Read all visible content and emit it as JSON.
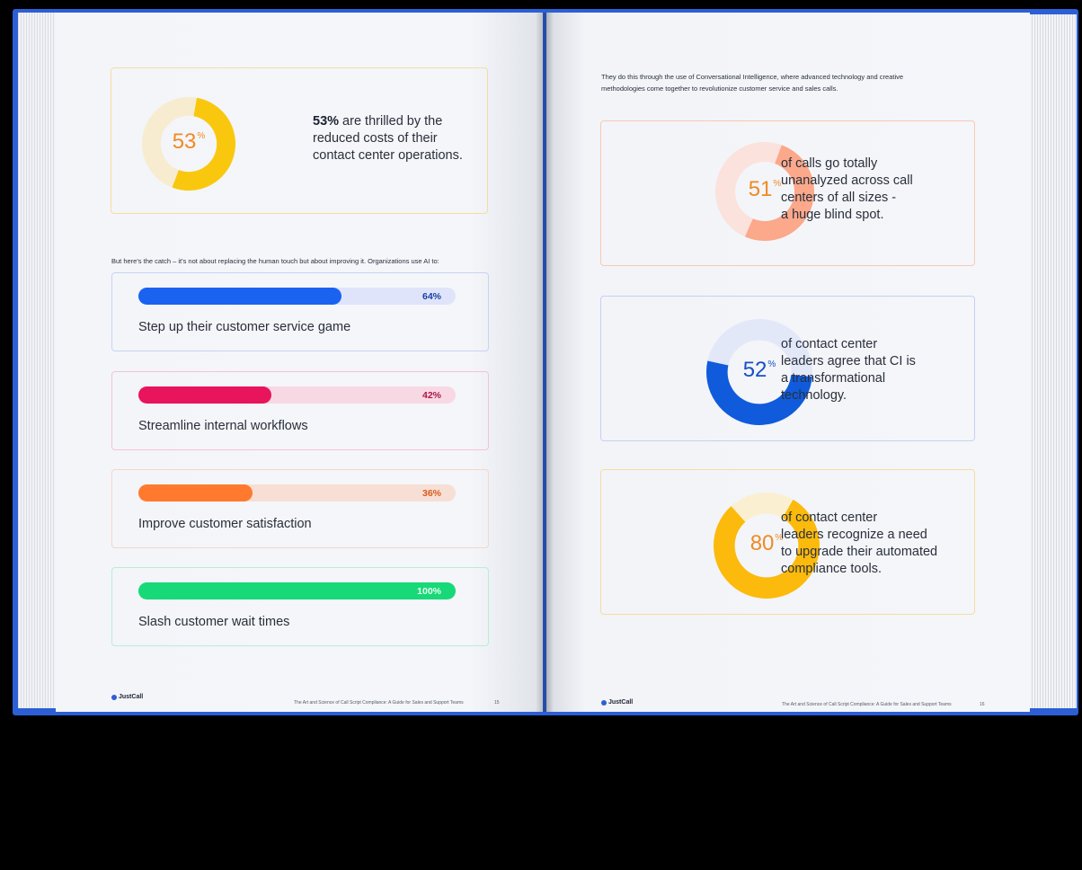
{
  "left": {
    "top_stat": {
      "value": "53",
      "pct_sign": "%",
      "fraction": 0.53,
      "bold": "53%",
      "text_line1": " are thrilled by the",
      "text_line2": "reduced costs of their",
      "text_line3": "contact center operations.",
      "colors": {
        "fill": "#f9c80e",
        "track": "#f8ecd0",
        "label": "#f08a24",
        "border": "#f7dca0"
      }
    },
    "intro": "But here's the catch – it's not about replacing the human touch but about improving it. Organizations use AI to:",
    "bars": [
      {
        "label": "Step up their customer service game",
        "pct_text": "64%",
        "value": 0.64,
        "fill": "#1a63f0",
        "track": "#dfe4fb",
        "pct_color": "#1a3fa8",
        "border": "#c9d3f3"
      },
      {
        "label": "Streamline internal workflows",
        "pct_text": "42%",
        "value": 0.42,
        "fill": "#e8145c",
        "track": "#f8d9e3",
        "pct_color": "#b0154a",
        "border": "#f5c3d3"
      },
      {
        "label": "Improve customer satisfaction",
        "pct_text": "36%",
        "value": 0.36,
        "fill": "#ff7a2e",
        "track": "#f7dfd5",
        "pct_color": "#d85a1c",
        "border": "#f6d6c6"
      },
      {
        "label": "Slash customer wait times",
        "pct_text": "100%",
        "value": 1.0,
        "fill": "#17d977",
        "track": "#d3f5e3",
        "pct_color": "#e9fff2",
        "border": "#b8eed2"
      }
    ],
    "footer": {
      "logo": "JustCall",
      "title": "The Art and Science of Call Script Compliance: A Guide for Sales and Support Teams",
      "page": "15"
    }
  },
  "right": {
    "intro_line1": "They do this through the use of Conversational Intelligence, where advanced technology and creative",
    "intro_line2": "methodologies come together to revolutionize customer service and sales calls.",
    "stats": [
      {
        "value": "51",
        "pct_sign": "%",
        "fraction": 0.51,
        "start_deg": 20,
        "lines": [
          "of calls go totally",
          "unanalyzed across call",
          "centers of all sizes -",
          "a huge blind spot."
        ],
        "fill": "#fba88b",
        "track": "#fbe2dc",
        "label": "#f08a24",
        "border": "#f7c9b5"
      },
      {
        "value": "52",
        "pct_sign": "%",
        "fraction": 0.52,
        "start_deg": 95,
        "lines": [
          "of contact center",
          "leaders agree that CI is",
          "a transformational",
          "technology."
        ],
        "fill": "#0f5bdc",
        "track": "#e3e8f9",
        "label": "#1a4fc2",
        "border": "#c6d1f2"
      },
      {
        "value": "80",
        "pct_sign": "%",
        "fraction": 0.8,
        "start_deg": 30,
        "lines": [
          "of contact center",
          "leaders recognize a need",
          "to upgrade their automated",
          "compliance tools."
        ],
        "fill": "#fbba0c",
        "track": "#faefd0",
        "label": "#f08a24",
        "border": "#f7dca0"
      }
    ],
    "footer": {
      "logo": "JustCall",
      "title": "The Art and Science of Call Script Compliance: A Guide for Sales and Support Teams",
      "page": "16"
    }
  }
}
